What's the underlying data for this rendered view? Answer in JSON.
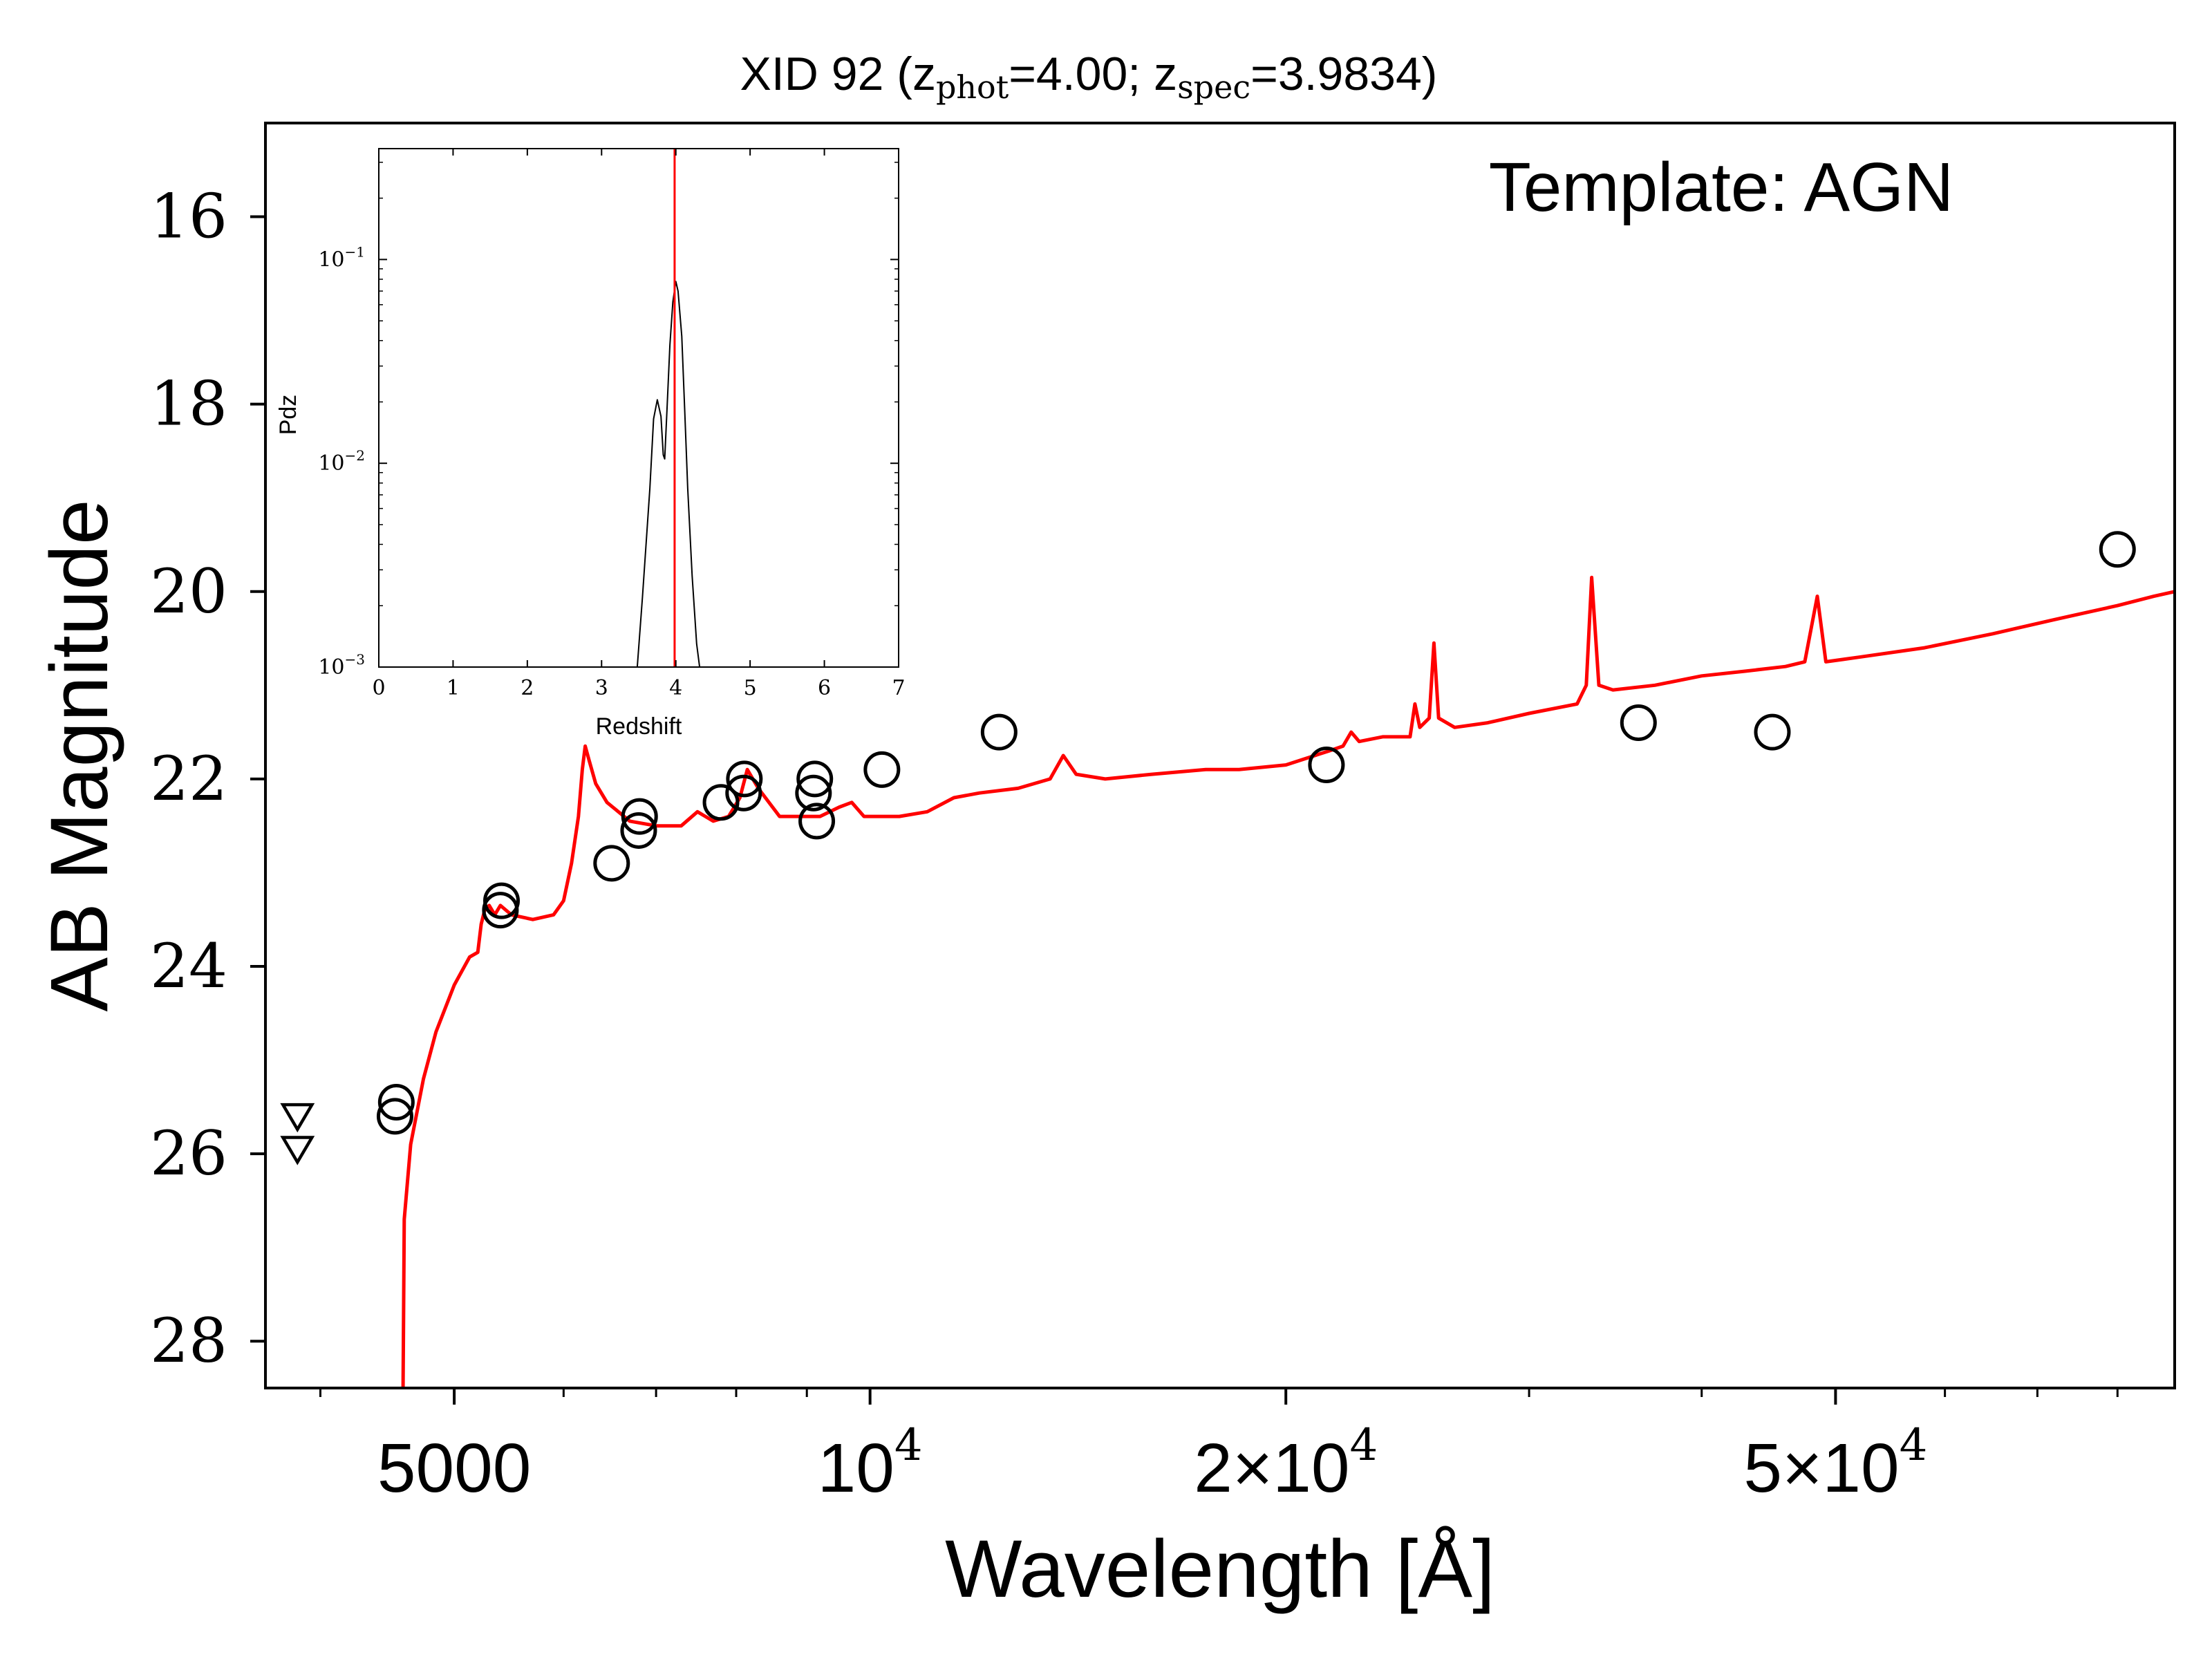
{
  "chart_data": [
    {
      "type": "scatter",
      "title": {
        "prefix": "XID 92 (z",
        "phot_sub": "phot",
        "mid": "=4.00; z",
        "spec_sub": "spec",
        "suffix": "=3.9834)"
      },
      "xlabel": "Wavelength [Å]",
      "ylabel": "AB Magnitude",
      "annotation": "Template: AGN",
      "x_scale": "log",
      "xlim": [
        3650,
        88000
      ],
      "ylim": [
        28.5,
        15
      ],
      "y_ticks": [
        {
          "value": 16,
          "label": "16"
        },
        {
          "value": 18,
          "label": "18"
        },
        {
          "value": 20,
          "label": "20"
        },
        {
          "value": 22,
          "label": "22"
        },
        {
          "value": 24,
          "label": "24"
        },
        {
          "value": 26,
          "label": "26"
        },
        {
          "value": 28,
          "label": "28"
        }
      ],
      "x_ticks": [
        {
          "value": 5000,
          "label": "5000",
          "base": "",
          "exp": ""
        },
        {
          "value": 10000,
          "label": "",
          "base": "10",
          "exp": "4"
        },
        {
          "value": 20000,
          "label": "",
          "base": "2×10",
          "exp": "4"
        },
        {
          "value": 50000,
          "label": "",
          "base": "5×10",
          "exp": "4"
        }
      ],
      "x_minor_ticks": [
        4000,
        6000,
        7000,
        8000,
        9000,
        30000,
        40000,
        60000,
        70000,
        80000
      ],
      "template_color": "#ff0000",
      "template_curve": [
        [
          4590,
          28.7
        ],
        [
          4600,
          26.7
        ],
        [
          4650,
          25.9
        ],
        [
          4750,
          25.2
        ],
        [
          4850,
          24.7
        ],
        [
          5000,
          24.2
        ],
        [
          5130,
          23.9
        ],
        [
          5200,
          23.85
        ],
        [
          5230,
          23.55
        ],
        [
          5260,
          23.4
        ],
        [
          5300,
          23.35
        ],
        [
          5350,
          23.45
        ],
        [
          5400,
          23.35
        ],
        [
          5500,
          23.45
        ],
        [
          5700,
          23.5
        ],
        [
          5900,
          23.45
        ],
        [
          6000,
          23.3
        ],
        [
          6080,
          22.9
        ],
        [
          6150,
          22.4
        ],
        [
          6190,
          21.9
        ],
        [
          6220,
          21.65
        ],
        [
          6260,
          21.8
        ],
        [
          6330,
          22.05
        ],
        [
          6450,
          22.25
        ],
        [
          6700,
          22.45
        ],
        [
          7000,
          22.5
        ],
        [
          7300,
          22.5
        ],
        [
          7500,
          22.35
        ],
        [
          7700,
          22.45
        ],
        [
          7900,
          22.4
        ],
        [
          8050,
          22.2
        ],
        [
          8150,
          21.9
        ],
        [
          8300,
          22.1
        ],
        [
          8600,
          22.4
        ],
        [
          9200,
          22.4
        ],
        [
          9500,
          22.3
        ],
        [
          9700,
          22.25
        ],
        [
          9900,
          22.4
        ],
        [
          10500,
          22.4
        ],
        [
          11000,
          22.35
        ],
        [
          11500,
          22.2
        ],
        [
          12000,
          22.15
        ],
        [
          12800,
          22.1
        ],
        [
          13500,
          22.0
        ],
        [
          13800,
          21.75
        ],
        [
          14100,
          21.95
        ],
        [
          14800,
          22.0
        ],
        [
          16000,
          21.95
        ],
        [
          17500,
          21.9
        ],
        [
          18500,
          21.9
        ],
        [
          20000,
          21.85
        ],
        [
          21500,
          21.7
        ],
        [
          22000,
          21.65
        ],
        [
          22300,
          21.5
        ],
        [
          22600,
          21.6
        ],
        [
          23500,
          21.55
        ],
        [
          24600,
          21.55
        ],
        [
          24800,
          21.2
        ],
        [
          25000,
          21.45
        ],
        [
          25400,
          21.35
        ],
        [
          25600,
          20.55
        ],
        [
          25800,
          21.35
        ],
        [
          26500,
          21.45
        ],
        [
          28000,
          21.4
        ],
        [
          30000,
          21.3
        ],
        [
          32500,
          21.2
        ],
        [
          33000,
          21.0
        ],
        [
          33300,
          19.85
        ],
        [
          33700,
          21.0
        ],
        [
          34500,
          21.05
        ],
        [
          37000,
          21.0
        ],
        [
          40000,
          20.9
        ],
        [
          43000,
          20.85
        ],
        [
          46000,
          20.8
        ],
        [
          47500,
          20.75
        ],
        [
          48500,
          20.05
        ],
        [
          49200,
          20.75
        ],
        [
          52000,
          20.7
        ],
        [
          58000,
          20.6
        ],
        [
          65000,
          20.45
        ],
        [
          72000,
          20.3
        ],
        [
          80000,
          20.15
        ],
        [
          85000,
          20.05
        ],
        [
          88000,
          20.0
        ]
      ],
      "detections": [
        {
          "x": 4530,
          "y": 25.6
        },
        {
          "x": 4540,
          "y": 25.45
        },
        {
          "x": 5400,
          "y": 23.4
        },
        {
          "x": 5410,
          "y": 23.3
        },
        {
          "x": 6500,
          "y": 22.9
        },
        {
          "x": 6800,
          "y": 22.55
        },
        {
          "x": 6810,
          "y": 22.4
        },
        {
          "x": 7800,
          "y": 22.25
        },
        {
          "x": 8100,
          "y": 22.15
        },
        {
          "x": 8110,
          "y": 22.0
        },
        {
          "x": 9100,
          "y": 22.15
        },
        {
          "x": 9120,
          "y": 22.0
        },
        {
          "x": 9150,
          "y": 22.45
        },
        {
          "x": 10200,
          "y": 21.9
        },
        {
          "x": 12400,
          "y": 21.5
        },
        {
          "x": 21400,
          "y": 21.85
        },
        {
          "x": 36000,
          "y": 21.4
        },
        {
          "x": 45000,
          "y": 21.5
        },
        {
          "x": 80000,
          "y": 19.55
        }
      ],
      "upper_limits": [
        {
          "x": 3850,
          "y": 25.6
        },
        {
          "x": 3850,
          "y": 25.95
        }
      ]
    },
    {
      "type": "line",
      "xlabel": "Redshift",
      "ylabel": "Pdz",
      "y_scale": "log",
      "xlim": [
        0,
        7
      ],
      "ylim": [
        0.001,
        0.35
      ],
      "x_ticks": [
        "0",
        "1",
        "2",
        "3",
        "4",
        "5",
        "6",
        "7"
      ],
      "y_ticks": [
        {
          "value": 0.001,
          "base": "10",
          "exp": "−3"
        },
        {
          "value": 0.01,
          "base": "10",
          "exp": "−2"
        },
        {
          "value": 0.1,
          "base": "10",
          "exp": "−1"
        }
      ],
      "pdz_color": "#000000",
      "spec_z_line": {
        "value": 3.9834,
        "color": "#ff0000"
      },
      "pdz_curve": [
        [
          3.48,
          0.001
        ],
        [
          3.55,
          0.0022
        ],
        [
          3.65,
          0.0075
        ],
        [
          3.7,
          0.0165
        ],
        [
          3.75,
          0.0205
        ],
        [
          3.8,
          0.017
        ],
        [
          3.83,
          0.011
        ],
        [
          3.85,
          0.0105
        ],
        [
          3.88,
          0.018
        ],
        [
          3.92,
          0.038
        ],
        [
          3.96,
          0.062
        ],
        [
          4.0,
          0.078
        ],
        [
          4.03,
          0.07
        ],
        [
          4.08,
          0.042
        ],
        [
          4.12,
          0.018
        ],
        [
          4.16,
          0.0075
        ],
        [
          4.22,
          0.0028
        ],
        [
          4.28,
          0.0013
        ],
        [
          4.32,
          0.001
        ]
      ]
    }
  ]
}
